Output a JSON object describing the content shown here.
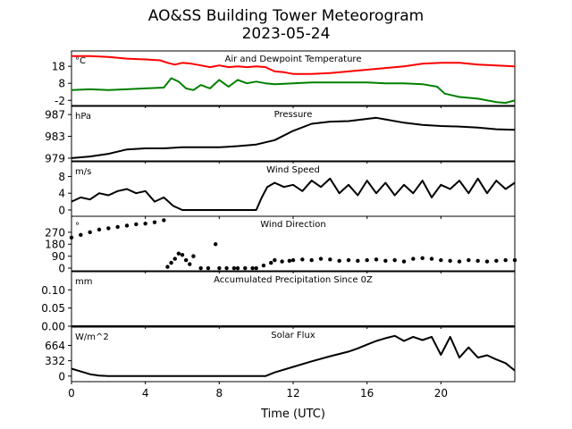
{
  "figure": {
    "title_line1": "AO&SS Building Tower Meteorogram",
    "title_line2": "2023-05-24",
    "xlabel": "Time (UTC)",
    "xticks": [
      0,
      4,
      8,
      12,
      16,
      20
    ]
  },
  "chart_data": [
    {
      "type": "line",
      "title": "Air and Dewpoint Temperature",
      "unit": "°C",
      "ylim": [
        -5,
        27
      ],
      "yticks": [
        -2,
        8,
        18
      ],
      "series": [
        {
          "color": "#ff0000",
          "x": [
            0,
            1,
            2,
            3,
            4,
            4.8,
            5.2,
            5.6,
            6,
            6.5,
            7,
            7.5,
            8,
            8.5,
            9,
            9.5,
            10,
            10.5,
            10.8,
            11,
            11.5,
            12,
            13,
            14,
            15,
            16,
            17,
            18,
            19,
            20,
            21,
            22,
            23,
            24
          ],
          "y": [
            24,
            24,
            23.5,
            22.5,
            22,
            21.5,
            20,
            19,
            20,
            19.5,
            18.5,
            17.5,
            18.5,
            17.5,
            18,
            17.5,
            18,
            17.5,
            16,
            15,
            14.5,
            13.5,
            13.5,
            14,
            15,
            16,
            17,
            18,
            19.5,
            20,
            20,
            19,
            18.5,
            18
          ]
        },
        {
          "color": "#008000",
          "x": [
            0,
            1,
            2,
            3,
            4,
            5,
            5.4,
            5.8,
            6.2,
            6.6,
            7,
            7.5,
            8,
            8.5,
            9,
            9.5,
            10,
            10.5,
            11,
            12,
            13,
            14,
            15,
            16,
            17,
            18,
            19,
            19.8,
            20.2,
            21,
            22,
            23,
            23.5,
            24
          ],
          "y": [
            4,
            4.5,
            4,
            4.5,
            5,
            5.5,
            11,
            9,
            5,
            4,
            7,
            5,
            10,
            6,
            10,
            8,
            9,
            8,
            7.5,
            8,
            8.5,
            8.5,
            8.5,
            8.5,
            8,
            8,
            7.5,
            6,
            2,
            0,
            -1,
            -3,
            -3.5,
            -2
          ]
        }
      ]
    },
    {
      "type": "line",
      "title": "Pressure",
      "unit": "hPa",
      "ylim": [
        978.5,
        988.5
      ],
      "yticks": [
        979,
        983,
        987
      ],
      "series": [
        {
          "color": "#000000",
          "x": [
            0,
            1,
            2,
            3,
            4,
            5,
            6,
            7,
            8,
            9,
            10,
            11,
            12,
            13,
            14,
            15,
            16,
            16.5,
            17,
            18,
            19,
            20,
            21,
            22,
            23,
            24
          ],
          "y": [
            979,
            979.3,
            979.8,
            980.6,
            980.8,
            980.8,
            981,
            981,
            981,
            981.2,
            981.5,
            982.3,
            984,
            985.3,
            985.7,
            985.8,
            986.2,
            986.4,
            986.1,
            985.5,
            985.1,
            984.9,
            984.8,
            984.6,
            984.3,
            984.2
          ]
        }
      ]
    },
    {
      "type": "line",
      "title": "Wind Speed",
      "unit": "m/s",
      "ylim": [
        -1.5,
        11.5
      ],
      "yticks": [
        0,
        4,
        8
      ],
      "series": [
        {
          "color": "#000000",
          "x": [
            0,
            0.5,
            1,
            1.5,
            2,
            2.5,
            3,
            3.5,
            4,
            4.5,
            5,
            5.5,
            6,
            7,
            8,
            9,
            10,
            10.3,
            10.6,
            11,
            11.5,
            12,
            12.5,
            13,
            13.5,
            14,
            14.5,
            15,
            15.5,
            16,
            16.5,
            17,
            17.5,
            18,
            18.5,
            19,
            19.5,
            20,
            20.5,
            21,
            21.5,
            22,
            22.5,
            23,
            23.5,
            24
          ],
          "y": [
            2,
            3,
            2.5,
            4,
            3.5,
            4.5,
            5,
            4,
            4.5,
            2,
            3,
            1,
            0,
            0,
            0,
            0,
            0,
            3,
            5.5,
            6.5,
            5.5,
            6,
            4.5,
            7,
            5.5,
            7.5,
            4,
            6,
            3.5,
            7,
            4,
            6.5,
            3.5,
            6,
            4,
            7,
            3,
            6,
            5,
            7,
            4,
            7.5,
            4,
            7,
            5,
            6.5
          ]
        }
      ]
    },
    {
      "type": "scatter",
      "title": "Wind Direction",
      "unit": "°",
      "ylim": [
        -20,
        390
      ],
      "yticks": [
        0,
        90,
        180,
        270
      ],
      "series": [
        {
          "color": "#000000",
          "x": [
            0,
            0.5,
            1,
            1.5,
            2,
            2.5,
            3,
            3.5,
            4,
            4.5,
            5,
            5.2,
            5.4,
            5.6,
            5.8,
            6,
            6.2,
            6.4,
            6.6,
            7,
            7.4,
            7.8,
            8,
            8.4,
            8.8,
            9,
            9.4,
            9.8,
            10,
            10.4,
            10.8,
            11,
            11.4,
            11.8,
            12,
            12.5,
            13,
            13.5,
            14,
            14.5,
            15,
            15.5,
            16,
            16.5,
            17,
            17.5,
            18,
            18.5,
            19,
            19.5,
            20,
            20.5,
            21,
            21.5,
            22,
            22.5,
            23,
            23.5,
            24
          ],
          "y": [
            230,
            250,
            270,
            290,
            300,
            310,
            320,
            330,
            335,
            345,
            360,
            10,
            40,
            70,
            110,
            100,
            60,
            30,
            90,
            0,
            0,
            180,
            0,
            0,
            0,
            0,
            0,
            0,
            0,
            20,
            40,
            60,
            50,
            55,
            60,
            65,
            60,
            70,
            65,
            55,
            60,
            55,
            60,
            65,
            55,
            60,
            50,
            70,
            75,
            70,
            60,
            55,
            50,
            60,
            55,
            50,
            55,
            60,
            60
          ]
        }
      ]
    },
    {
      "type": "line",
      "title": "Accumulated Precipitation Since 0Z",
      "unit": "mm",
      "ylim": [
        0,
        0.15
      ],
      "yticks": [
        0.0,
        0.05,
        0.1
      ],
      "ytick_labels": [
        "0.00",
        "0.05",
        "0.10"
      ],
      "series": [
        {
          "color": "#000000",
          "x": [
            0,
            24
          ],
          "y": [
            0,
            0
          ]
        }
      ]
    },
    {
      "type": "line",
      "title": "Solar Flux",
      "unit": "W/m^2",
      "ylim": [
        -120,
        1060
      ],
      "yticks": [
        0,
        332,
        664
      ],
      "series": [
        {
          "color": "#000000",
          "x": [
            0,
            0.5,
            1,
            1.5,
            2,
            4,
            6,
            8,
            10,
            10.5,
            11,
            12,
            13,
            14,
            15,
            15.5,
            16,
            16.5,
            17,
            17.5,
            18,
            18.5,
            19,
            19.5,
            20,
            20.5,
            21,
            21.5,
            22,
            22.5,
            23,
            23.5,
            24
          ],
          "y": [
            160,
            100,
            40,
            10,
            0,
            0,
            0,
            0,
            0,
            0,
            80,
            200,
            320,
            430,
            530,
            600,
            680,
            760,
            820,
            870,
            760,
            850,
            780,
            850,
            460,
            850,
            400,
            620,
            400,
            450,
            360,
            280,
            120
          ]
        }
      ]
    }
  ]
}
